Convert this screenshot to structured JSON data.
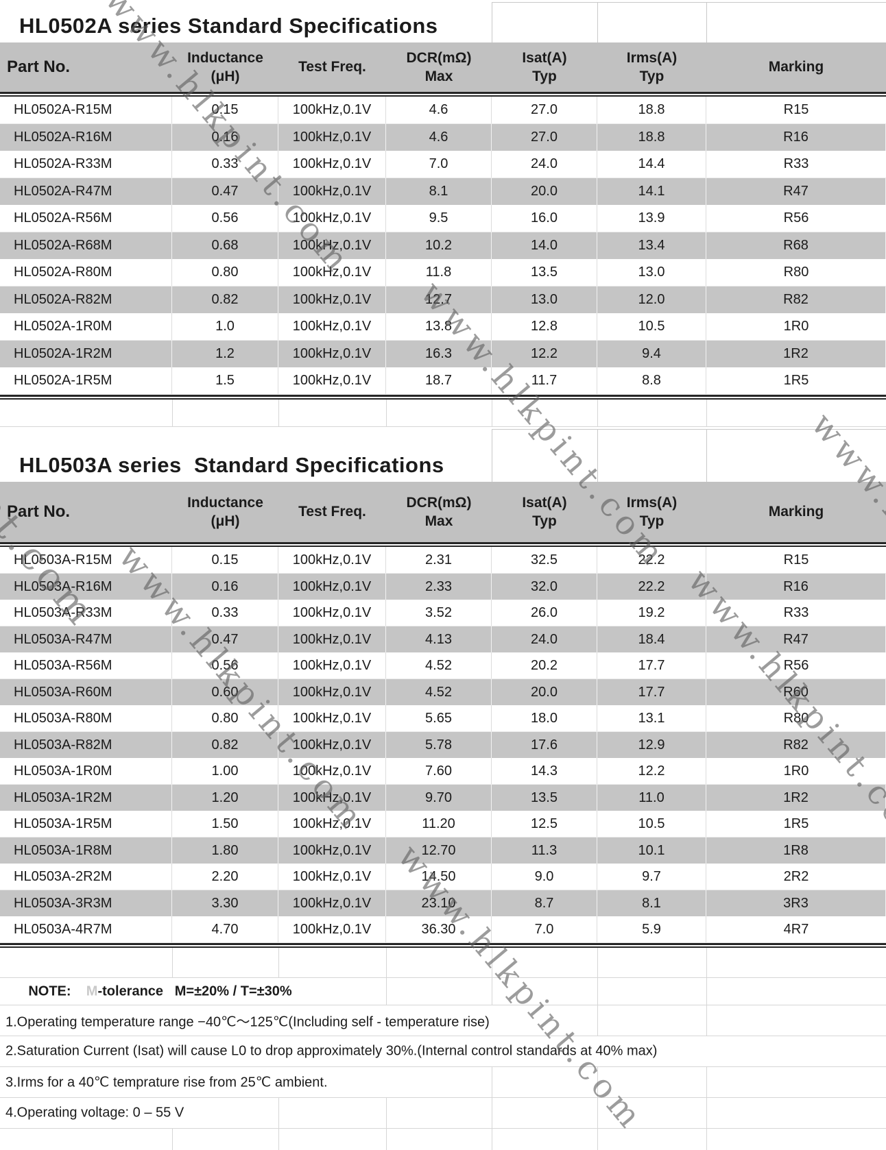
{
  "watermark": {
    "text": "www.hlkpint.com"
  },
  "tables": [
    {
      "title": "HL0502A series Standard Specifications",
      "headers": [
        {
          "line1": "Part No.",
          "line2": ""
        },
        {
          "line1": "Inductance",
          "line2": "(μH)"
        },
        {
          "line1": "Test Freq.",
          "line2": ""
        },
        {
          "line1": "DCR(mΩ)",
          "line2": "Max"
        },
        {
          "line1": "Isat(A)",
          "line2": "Typ"
        },
        {
          "line1": "Irms(A)",
          "line2": "Typ"
        },
        {
          "line1": "Marking",
          "line2": ""
        }
      ],
      "rows": [
        [
          "HL0502A-R15M",
          "0.15",
          "100kHz,0.1V",
          "4.6",
          "27.0",
          "18.8",
          "R15"
        ],
        [
          "HL0502A-R16M",
          "0.16",
          "100kHz,0.1V",
          "4.6",
          "27.0",
          "18.8",
          "R16"
        ],
        [
          "HL0502A-R33M",
          "0.33",
          "100kHz,0.1V",
          "7.0",
          "24.0",
          "14.4",
          "R33"
        ],
        [
          "HL0502A-R47M",
          "0.47",
          "100kHz,0.1V",
          "8.1",
          "20.0",
          "14.1",
          "R47"
        ],
        [
          "HL0502A-R56M",
          "0.56",
          "100kHz,0.1V",
          "9.5",
          "16.0",
          "13.9",
          "R56"
        ],
        [
          "HL0502A-R68M",
          "0.68",
          "100kHz,0.1V",
          "10.2",
          "14.0",
          "13.4",
          "R68"
        ],
        [
          "HL0502A-R80M",
          "0.80",
          "100kHz,0.1V",
          "11.8",
          "13.5",
          "13.0",
          "R80"
        ],
        [
          "HL0502A-R82M",
          "0.82",
          "100kHz,0.1V",
          "12.7",
          "13.0",
          "12.0",
          "R82"
        ],
        [
          "HL0502A-1R0M",
          "1.0",
          "100kHz,0.1V",
          "13.8",
          "12.8",
          "10.5",
          "1R0"
        ],
        [
          "HL0502A-1R2M",
          "1.2",
          "100kHz,0.1V",
          "16.3",
          "12.2",
          "9.4",
          "1R2"
        ],
        [
          "HL0502A-1R5M",
          "1.5",
          "100kHz,0.1V",
          "18.7",
          "11.7",
          "8.8",
          "1R5"
        ]
      ]
    },
    {
      "title": "HL0503A series  Standard Specifications",
      "headers": [
        {
          "line1": "Part No.",
          "line2": ""
        },
        {
          "line1": "Inductance",
          "line2": "(μH)"
        },
        {
          "line1": "Test Freq.",
          "line2": ""
        },
        {
          "line1": "DCR(mΩ)",
          "line2": "Max"
        },
        {
          "line1": "Isat(A)",
          "line2": "Typ"
        },
        {
          "line1": "Irms(A)",
          "line2": "Typ"
        },
        {
          "line1": "Marking",
          "line2": ""
        }
      ],
      "rows": [
        [
          "HL0503A-R15M",
          "0.15",
          "100kHz,0.1V",
          "2.31",
          "32.5",
          "22.2",
          "R15"
        ],
        [
          "HL0503A-R16M",
          "0.16",
          "100kHz,0.1V",
          "2.33",
          "32.0",
          "22.2",
          "R16"
        ],
        [
          "HL0503A-R33M",
          "0.33",
          "100kHz,0.1V",
          "3.52",
          "26.0",
          "19.2",
          "R33"
        ],
        [
          "HL0503A-R47M",
          "0.47",
          "100kHz,0.1V",
          "4.13",
          "24.0",
          "18.4",
          "R47"
        ],
        [
          "HL0503A-R56M",
          "0.56",
          "100kHz,0.1V",
          "4.52",
          "20.2",
          "17.7",
          "R56"
        ],
        [
          "HL0503A-R60M",
          "0.60",
          "100kHz,0.1V",
          "4.52",
          "20.0",
          "17.7",
          "R60"
        ],
        [
          "HL0503A-R80M",
          "0.80",
          "100kHz,0.1V",
          "5.65",
          "18.0",
          "13.1",
          "R80"
        ],
        [
          "HL0503A-R82M",
          "0.82",
          "100kHz,0.1V",
          "5.78",
          "17.6",
          "12.9",
          "R82"
        ],
        [
          "HL0503A-1R0M",
          "1.00",
          "100kHz,0.1V",
          "7.60",
          "14.3",
          "12.2",
          "1R0"
        ],
        [
          "HL0503A-1R2M",
          "1.20",
          "100kHz,0.1V",
          "9.70",
          "13.5",
          "11.0",
          "1R2"
        ],
        [
          "HL0503A-1R5M",
          "1.50",
          "100kHz,0.1V",
          "11.20",
          "12.5",
          "10.5",
          "1R5"
        ],
        [
          "HL0503A-1R8M",
          "1.80",
          "100kHz,0.1V",
          "12.70",
          "11.3",
          "10.1",
          "1R8"
        ],
        [
          "HL0503A-2R2M",
          "2.20",
          "100kHz,0.1V",
          "14.50",
          "9.0",
          "9.7",
          "2R2"
        ],
        [
          "HL0503A-3R3M",
          "3.30",
          "100kHz,0.1V",
          "23.10",
          "8.7",
          "8.1",
          "3R3"
        ],
        [
          "HL0503A-4R7M",
          "4.70",
          "100kHz,0.1V",
          "36.30",
          "7.0",
          "5.9",
          "4R7"
        ]
      ]
    }
  ],
  "notes": {
    "label": "NOTE:",
    "faint_prefix": "M",
    "tolerance_suffix": "-tolerance",
    "tolerance_values": "M=±20% / T=±30%",
    "lines": [
      "1.Operating temperature range −40℃～125℃(Including self - temperature rise)",
      "2.Saturation Current (Isat) will cause L0 to drop approximately 30%.(Internal control standards at 40% max)",
      "3.Irms for a 40℃ temprature rise from 25℃ ambient.",
      "4.Operating voltage: 0 – 55 V"
    ]
  }
}
